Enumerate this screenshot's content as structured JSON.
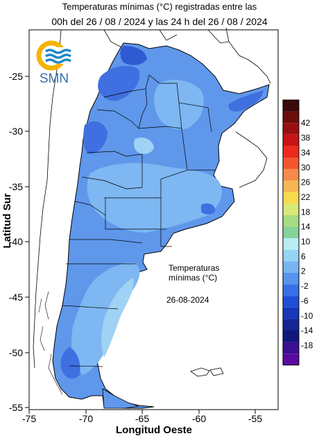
{
  "header": {
    "line1": "Temperaturas mínimas (°C) registradas entre las",
    "line2": "00h del 26 / 08 / 2024 y las 24 h del 26 / 08 / 2024"
  },
  "logo": {
    "text": "SMN"
  },
  "axes": {
    "xlabel": "Longitud Oeste",
    "ylabel": "Latitud Sur",
    "x_ticks": [
      "-75",
      "-70",
      "-65",
      "-60",
      "-55"
    ],
    "y_ticks": [
      "-25",
      "-30",
      "-35",
      "-40",
      "-45",
      "-50",
      "-55"
    ]
  },
  "annotation": {
    "line1": "Temperaturas",
    "line2": "mínimas (°C)",
    "date": "26-08-2024"
  },
  "colorbar": {
    "labels": [
      "42",
      "38",
      "34",
      "30",
      "26",
      "22",
      "18",
      "14",
      "10",
      "6",
      "2",
      "-2",
      "-6",
      "-10",
      "-14",
      "-18"
    ],
    "colors": [
      "#3b0a0a",
      "#6b0e0e",
      "#9a1010",
      "#c81414",
      "#ee2a1e",
      "#f4562e",
      "#f58a4a",
      "#f7b554",
      "#f7da4e",
      "#d8e87a",
      "#a6dc82",
      "#86d39a",
      "#b8ecf2",
      "#96d4f4",
      "#78b6f0",
      "#5894ee",
      "#3a70e6",
      "#1f4ed8",
      "#1838b8",
      "#142696",
      "#10197a",
      "#3a0f90",
      "#5a0aa0"
    ]
  }
}
